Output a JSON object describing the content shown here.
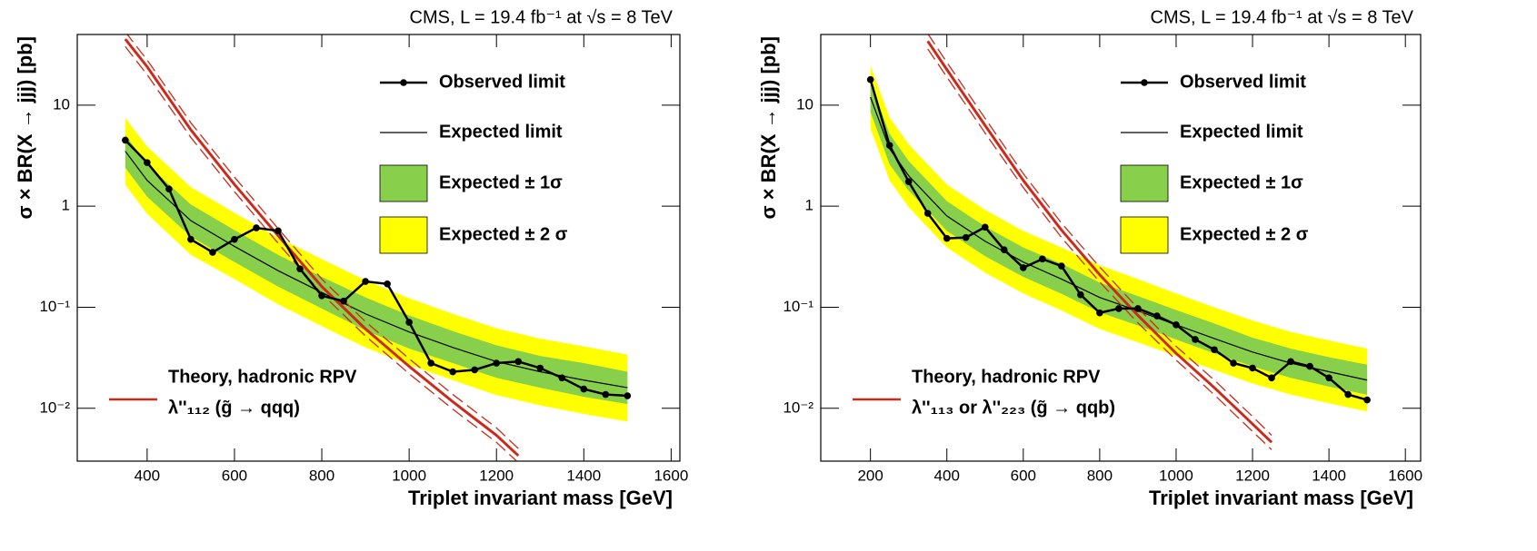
{
  "chart_data": [
    {
      "type": "line",
      "title": "CMS, L = 19.4 fb⁻¹ at √s  =  8 TeV",
      "x_label": "Triplet invariant mass [GeV]",
      "y_label": "σ × BR(X → jjj) [pb]",
      "log_y": true,
      "legend_position": "upper right",
      "xlim": [
        240,
        1620
      ],
      "ylim": [
        0.003,
        50
      ],
      "xticks": [
        400,
        600,
        800,
        1000,
        1200,
        1400,
        1600
      ],
      "yticks": [
        {
          "value": 0.01,
          "label": "10⁻²"
        },
        {
          "value": 0.1,
          "label": "10⁻¹"
        },
        1,
        10
      ],
      "series": [
        {
          "name": "Observed limit",
          "color": "#000000",
          "x": [
            350,
            400,
            450,
            500,
            550,
            600,
            650,
            700,
            750,
            800,
            850,
            900,
            950,
            1000,
            1050,
            1100,
            1150,
            1200,
            1250,
            1300,
            1350,
            1400,
            1450,
            1500
          ],
          "values": [
            4.5,
            2.7,
            1.48,
            0.47,
            0.35,
            0.47,
            0.61,
            0.57,
            0.24,
            0.13,
            0.115,
            0.18,
            0.17,
            0.071,
            0.028,
            0.023,
            0.024,
            0.028,
            0.029,
            0.025,
            0.02,
            0.0155,
            0.0137,
            0.0133
          ]
        },
        {
          "name": "Expected limit",
          "color": "#000000",
          "x": [
            350,
            400,
            500,
            600,
            700,
            800,
            900,
            1000,
            1100,
            1200,
            1300,
            1400,
            1500
          ],
          "values": [
            3.5,
            1.8,
            0.72,
            0.4,
            0.23,
            0.14,
            0.086,
            0.057,
            0.04,
            0.029,
            0.023,
            0.019,
            0.016
          ]
        }
      ],
      "bands": [
        {
          "name": "Expected ± 1σ",
          "color": "#88d04b",
          "x": [
            350,
            400,
            500,
            600,
            700,
            800,
            900,
            1000,
            1100,
            1200,
            1300,
            1400,
            1500
          ],
          "low": [
            2.4,
            1.24,
            0.5,
            0.28,
            0.16,
            0.097,
            0.059,
            0.039,
            0.028,
            0.02,
            0.016,
            0.013,
            0.011
          ],
          "high": [
            5.1,
            2.6,
            1.04,
            0.58,
            0.33,
            0.2,
            0.125,
            0.083,
            0.058,
            0.042,
            0.033,
            0.028,
            0.023
          ]
        },
        {
          "name": "Expected ± 2 σ",
          "color": "#ffff00",
          "x": [
            350,
            400,
            500,
            600,
            700,
            800,
            900,
            1000,
            1100,
            1200,
            1300,
            1400,
            1500
          ],
          "low": [
            1.63,
            0.84,
            0.33,
            0.19,
            0.107,
            0.065,
            0.04,
            0.027,
            0.019,
            0.0135,
            0.0107,
            0.0088,
            0.0074
          ],
          "high": [
            7.5,
            3.9,
            1.55,
            0.86,
            0.49,
            0.3,
            0.185,
            0.123,
            0.086,
            0.062,
            0.049,
            0.041,
            0.034
          ]
        }
      ],
      "theory": {
        "title": "Theory, hadronic RPV",
        "name": "λ''₁₁₂ (g̃ →  qqq)",
        "color": "#cc2a1a",
        "x": [
          350,
          400,
          500,
          600,
          700,
          800,
          900,
          1000,
          1100,
          1200,
          1250
        ],
        "values": [
          45,
          24,
          5.7,
          1.64,
          0.51,
          0.16,
          0.061,
          0.026,
          0.0116,
          0.0054,
          0.0034
        ],
        "low": [
          38,
          20,
          4.8,
          1.39,
          0.43,
          0.136,
          0.052,
          0.022,
          0.0098,
          0.0046,
          0.0029
        ],
        "high": [
          53,
          28,
          6.7,
          1.94,
          0.6,
          0.19,
          0.072,
          0.031,
          0.0137,
          0.0064,
          0.004
        ]
      }
    },
    {
      "type": "line",
      "title": "CMS, L = 19.4 fb⁻¹ at √s  =  8 TeV",
      "x_label": "Triplet invariant mass [GeV]",
      "y_label": "σ × BR(X → jjj) [pb]",
      "log_y": true,
      "legend_position": "upper right",
      "xlim": [
        70,
        1640
      ],
      "ylim": [
        0.003,
        50
      ],
      "xticks": [
        200,
        400,
        600,
        800,
        1000,
        1200,
        1400,
        1600
      ],
      "yticks": [
        {
          "value": 0.01,
          "label": "10⁻²"
        },
        {
          "value": 0.1,
          "label": "10⁻¹"
        },
        1,
        10
      ],
      "series": [
        {
          "name": "Observed limit",
          "color": "#000000",
          "x": [
            200,
            250,
            300,
            350,
            400,
            450,
            500,
            550,
            600,
            650,
            700,
            750,
            800,
            850,
            900,
            950,
            1000,
            1050,
            1100,
            1150,
            1200,
            1250,
            1300,
            1350,
            1400,
            1450,
            1500
          ],
          "values": [
            17.9,
            4.0,
            1.75,
            0.85,
            0.48,
            0.49,
            0.62,
            0.37,
            0.246,
            0.3,
            0.256,
            0.133,
            0.088,
            0.097,
            0.097,
            0.082,
            0.067,
            0.048,
            0.038,
            0.028,
            0.025,
            0.02,
            0.029,
            0.026,
            0.02,
            0.0137,
            0.0121
          ]
        },
        {
          "name": "Expected limit",
          "color": "#000000",
          "x": [
            200,
            250,
            300,
            400,
            500,
            600,
            700,
            800,
            900,
            1000,
            1100,
            1200,
            1300,
            1400,
            1500
          ],
          "values": [
            12,
            3.7,
            2.0,
            0.8,
            0.45,
            0.28,
            0.19,
            0.125,
            0.092,
            0.067,
            0.049,
            0.036,
            0.028,
            0.023,
            0.019
          ]
        }
      ],
      "bands": [
        {
          "name": "Expected ± 1σ",
          "color": "#88d04b",
          "x": [
            200,
            250,
            300,
            400,
            500,
            600,
            700,
            800,
            900,
            1000,
            1100,
            1200,
            1300,
            1400,
            1500
          ],
          "low": [
            8.6,
            2.6,
            1.43,
            0.57,
            0.32,
            0.2,
            0.136,
            0.089,
            0.066,
            0.048,
            0.035,
            0.026,
            0.02,
            0.0164,
            0.0136
          ],
          "high": [
            16.8,
            5.2,
            2.8,
            1.12,
            0.63,
            0.39,
            0.27,
            0.175,
            0.129,
            0.094,
            0.069,
            0.05,
            0.039,
            0.032,
            0.027
          ]
        },
        {
          "name": "Expected ± 2 σ",
          "color": "#ffff00",
          "x": [
            200,
            250,
            300,
            400,
            500,
            600,
            700,
            800,
            900,
            1000,
            1100,
            1200,
            1300,
            1400,
            1500
          ],
          "low": [
            5.9,
            1.8,
            0.98,
            0.39,
            0.22,
            0.137,
            0.093,
            0.061,
            0.045,
            0.033,
            0.024,
            0.0176,
            0.0137,
            0.0112,
            0.0093
          ],
          "high": [
            24.6,
            7.6,
            4.1,
            1.64,
            0.92,
            0.57,
            0.39,
            0.26,
            0.19,
            0.137,
            0.1,
            0.074,
            0.057,
            0.047,
            0.039
          ]
        }
      ],
      "theory": {
        "title": "Theory, hadronic RPV",
        "name": "λ''₁₁₃ or λ''₂₂₃ (g̃ → qqb)",
        "color": "#cc2a1a",
        "x": [
          350,
          400,
          500,
          600,
          700,
          800,
          900,
          1000,
          1100,
          1200,
          1250
        ],
        "values": [
          43,
          22.5,
          6.3,
          1.8,
          0.58,
          0.21,
          0.083,
          0.035,
          0.016,
          0.007,
          0.0046
        ],
        "low": [
          36,
          19,
          5.3,
          1.53,
          0.49,
          0.178,
          0.07,
          0.03,
          0.0136,
          0.0059,
          0.0039
        ],
        "high": [
          51,
          26.5,
          7.4,
          2.1,
          0.68,
          0.25,
          0.098,
          0.041,
          0.019,
          0.0083,
          0.0054
        ]
      }
    }
  ]
}
